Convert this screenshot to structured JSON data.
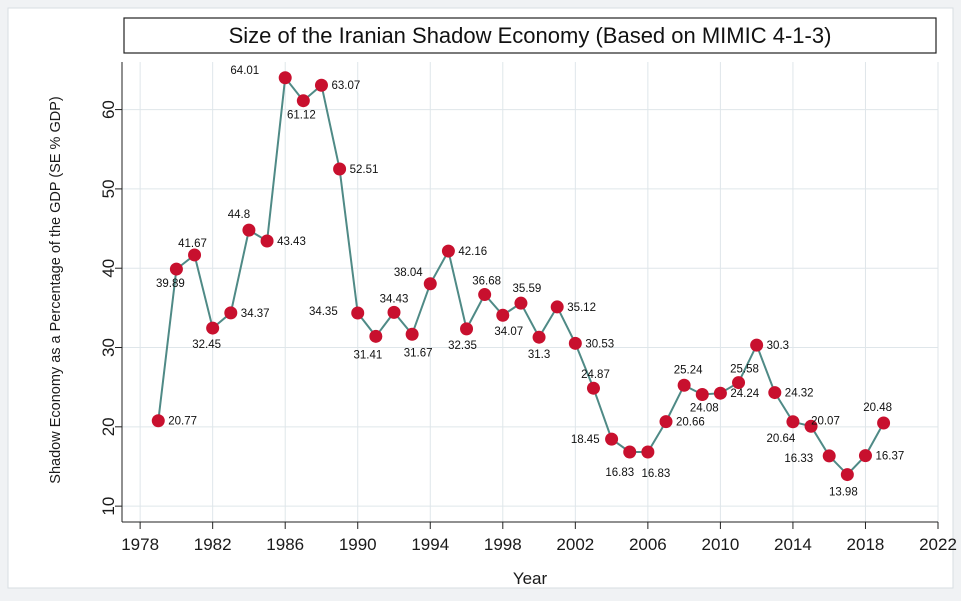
{
  "chart_data": {
    "type": "line",
    "title": "Size of the Iranian Shadow Economy (Based on MIMIC 4-1-3)",
    "xlabel": "Year",
    "ylabel": "Shadow Economy as a Percentage of the GDP (SE % GDP)",
    "xlim": [
      1977,
      2022
    ],
    "ylim": [
      8,
      66
    ],
    "xticks": [
      1978,
      1982,
      1986,
      1990,
      1994,
      1998,
      2002,
      2006,
      2010,
      2014,
      2018,
      2022
    ],
    "yticks": [
      10,
      20,
      30,
      40,
      50,
      60
    ],
    "grid": true,
    "colors": {
      "line": "#4f8a86",
      "marker": "#c8102e",
      "grid": "#dfe6ea"
    },
    "series": [
      {
        "x": [
          1979,
          1980,
          1981,
          1982,
          1983,
          1984,
          1985,
          1986,
          1987,
          1988,
          1989,
          1990,
          1991,
          1992,
          1993,
          1994,
          1995,
          1996,
          1997,
          1998,
          1999,
          2000,
          2001,
          2002,
          2003,
          2004,
          2005,
          2006,
          2007,
          2008,
          2009,
          2010,
          2011,
          2012,
          2013,
          2014,
          2015,
          2016,
          2017,
          2018,
          2019
        ],
        "values": [
          20.77,
          39.89,
          41.67,
          32.45,
          34.37,
          44.8,
          43.43,
          64.01,
          61.12,
          63.07,
          52.51,
          34.35,
          31.41,
          34.43,
          31.67,
          38.04,
          42.16,
          32.35,
          36.68,
          34.07,
          35.59,
          31.3,
          35.12,
          30.53,
          24.87,
          18.45,
          16.83,
          16.83,
          20.66,
          25.24,
          24.08,
          24.24,
          25.58,
          30.3,
          24.32,
          20.64,
          20.07,
          16.33,
          13.98,
          16.37,
          20.48
        ],
        "labels": [
          "20.77",
          "39.89",
          "41.67",
          "32.45",
          "34.37",
          "44.8",
          "43.43",
          "64.01",
          "61.12",
          "63.07",
          "52.51",
          "34.35",
          "31.41",
          "34.43",
          "31.67",
          "38.04",
          "42.16",
          "32.35",
          "36.68",
          "34.07",
          "35.59",
          "31.3",
          "35.12",
          "30.53",
          "24.87",
          "18.45",
          "16.83",
          "16.83",
          "20.66",
          "25.24",
          "24.08",
          "24.24",
          "25.58",
          "30.3",
          "24.32",
          "20.64",
          "20.07",
          "16.33",
          "13.98",
          "16.37",
          "20.48"
        ]
      }
    ]
  }
}
